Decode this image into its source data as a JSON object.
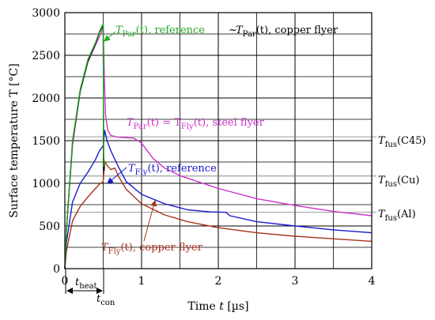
{
  "chart_data": {
    "type": "line",
    "xlabel": {
      "main": "Time ",
      "var": "t",
      "unit": " [µs]"
    },
    "ylabel": "Surface temperature T [°C]",
    "xlim": [
      0,
      4
    ],
    "ylim": [
      0,
      3000
    ],
    "x_ticks": [
      0,
      1,
      2,
      3,
      4
    ],
    "y_ticks": [
      0,
      500,
      1000,
      1500,
      2000,
      2500,
      3000
    ],
    "x_minor_grid": [
      0.5,
      1.5,
      2.5,
      3.5
    ],
    "y_minor_grid": [
      250,
      750,
      1250,
      1750,
      2250,
      2750
    ],
    "grid": true,
    "t_heat": 0.5,
    "series": [
      {
        "id": "par_ref",
        "color": "#22a822",
        "points": [
          [
            0,
            0
          ],
          [
            0.02,
            450
          ],
          [
            0.1,
            1500
          ],
          [
            0.2,
            2100
          ],
          [
            0.3,
            2450
          ],
          [
            0.4,
            2650
          ],
          [
            0.45,
            2780
          ],
          [
            0.5,
            2870
          ],
          [
            0.505,
            1350
          ],
          [
            0.51,
            1200
          ],
          [
            0.52,
            1260
          ]
        ]
      },
      {
        "id": "par_cu",
        "color": "#000000",
        "points": [
          [
            0,
            0
          ],
          [
            0.02,
            440
          ],
          [
            0.1,
            1480
          ],
          [
            0.2,
            2080
          ],
          [
            0.3,
            2430
          ],
          [
            0.4,
            2640
          ],
          [
            0.45,
            2770
          ],
          [
            0.5,
            2850
          ],
          [
            0.505,
            1300
          ],
          [
            0.51,
            1150
          ],
          [
            0.52,
            1240
          ]
        ]
      },
      {
        "id": "steel",
        "color": "#cc33cc",
        "points": [
          [
            0,
            0
          ],
          [
            0.02,
            450
          ],
          [
            0.1,
            1450
          ],
          [
            0.2,
            2080
          ],
          [
            0.3,
            2420
          ],
          [
            0.4,
            2620
          ],
          [
            0.45,
            2720
          ],
          [
            0.5,
            2820
          ],
          [
            0.515,
            2200
          ],
          [
            0.53,
            1800
          ],
          [
            0.56,
            1620
          ],
          [
            0.6,
            1560
          ],
          [
            0.7,
            1540
          ],
          [
            0.9,
            1530
          ],
          [
            1.0,
            1470
          ],
          [
            1.15,
            1290
          ],
          [
            1.3,
            1180
          ],
          [
            1.5,
            1090
          ],
          [
            2.0,
            940
          ],
          [
            2.5,
            820
          ],
          [
            3.0,
            740
          ],
          [
            3.5,
            670
          ],
          [
            4.0,
            620
          ]
        ]
      },
      {
        "id": "fly_ref",
        "color": "#1a1acc",
        "points": [
          [
            0,
            0
          ],
          [
            0.02,
            300
          ],
          [
            0.1,
            780
          ],
          [
            0.2,
            1000
          ],
          [
            0.3,
            1130
          ],
          [
            0.4,
            1280
          ],
          [
            0.45,
            1380
          ],
          [
            0.5,
            1440
          ],
          [
            0.52,
            1620
          ],
          [
            0.55,
            1500
          ],
          [
            0.6,
            1380
          ],
          [
            0.7,
            1190
          ],
          [
            0.8,
            1020
          ],
          [
            1.0,
            870
          ],
          [
            1.3,
            760
          ],
          [
            1.6,
            690
          ],
          [
            1.9,
            665
          ],
          [
            2.1,
            660
          ],
          [
            2.15,
            620
          ],
          [
            2.5,
            550
          ],
          [
            3.0,
            500
          ],
          [
            3.5,
            455
          ],
          [
            4.0,
            420
          ]
        ]
      },
      {
        "id": "fly_cu",
        "color": "#a83218",
        "points": [
          [
            0,
            0
          ],
          [
            0.02,
            200
          ],
          [
            0.1,
            560
          ],
          [
            0.2,
            730
          ],
          [
            0.3,
            840
          ],
          [
            0.4,
            940
          ],
          [
            0.45,
            990
          ],
          [
            0.5,
            1020
          ],
          [
            0.52,
            1260
          ],
          [
            0.55,
            1210
          ],
          [
            0.6,
            1160
          ],
          [
            0.65,
            1180
          ],
          [
            0.7,
            1080
          ],
          [
            0.8,
            930
          ],
          [
            1.0,
            760
          ],
          [
            1.3,
            630
          ],
          [
            1.6,
            550
          ],
          [
            2.0,
            480
          ],
          [
            2.5,
            420
          ],
          [
            3.0,
            380
          ],
          [
            3.5,
            350
          ],
          [
            4.0,
            320
          ]
        ]
      }
    ],
    "reference_lines": [
      {
        "id": "C45",
        "y": 1545,
        "label_main": "T",
        "label_sub": "fus",
        "label_rest": "(C45)"
      },
      {
        "id": "Cu",
        "y": 1085,
        "label_main": "T",
        "label_sub": "fus",
        "label_rest": "(Cu)"
      },
      {
        "id": "Al",
        "y": 660,
        "label_main": "T",
        "label_sub": "fus",
        "label_rest": "(Al)"
      }
    ],
    "annotations": {
      "par_ref": {
        "var": "T",
        "sub": "Par",
        "rest": "(t), reference",
        "color": "#22a822"
      },
      "tilde": {
        "text": "~",
        "color": "#000000"
      },
      "par_cu": {
        "var": "T",
        "sub": "Par",
        "rest": "(t), copper flyer",
        "color": "#000000"
      },
      "steel": {
        "text_a": "T",
        "sub_a": "Par",
        "mid": "(t) = T",
        "sub_b": "Fly",
        "rest": "(t), steel flyer",
        "color": "#cc33cc"
      },
      "fly_ref": {
        "var": "T",
        "sub": "Fly",
        "rest": "(t), reference",
        "color": "#1a1acc"
      },
      "fly_cu": {
        "var": "T",
        "sub": "Fly",
        "rest": "(t), copper flyer",
        "color": "#a83218"
      }
    },
    "time_labels": {
      "heat": {
        "var": "t",
        "sub": "heat"
      },
      "con": {
        "var": "t",
        "sub": "con"
      }
    }
  }
}
